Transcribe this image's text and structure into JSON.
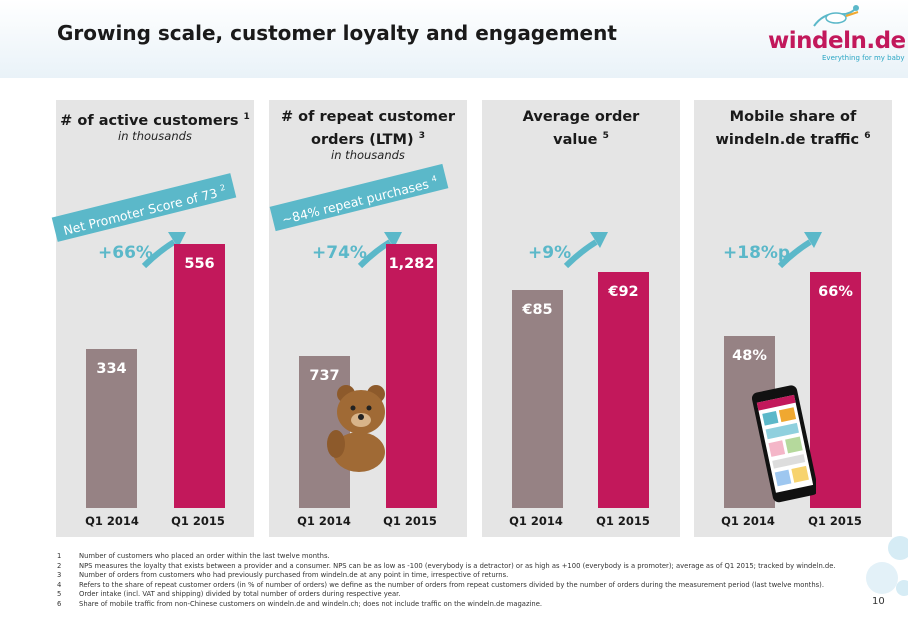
{
  "header": {
    "title": "Growing scale, customer loyalty and engagement"
  },
  "logo": {
    "name": "windeln.de",
    "tagline": "Everything for my baby"
  },
  "panels": [
    {
      "title": "# of active customers",
      "sup": "1",
      "subtitle": "in thousands",
      "growth": "+66%",
      "banner": "Net Promoter Score of 73",
      "banner_sup": "2",
      "values": [
        "334",
        "556"
      ],
      "categories": [
        "Q1 2014",
        "Q1 2015"
      ]
    },
    {
      "title": "# of repeat customer orders (LTM)",
      "sup": "3",
      "subtitle": "in thousands",
      "growth": "+74%",
      "banner": "~84% repeat purchases",
      "banner_sup": "4",
      "values": [
        "737",
        "1,282"
      ],
      "categories": [
        "Q1 2014",
        "Q1 2015"
      ]
    },
    {
      "title": "Average order value",
      "sup": "5",
      "growth": "+9%",
      "values": [
        "€85",
        "€92"
      ],
      "categories": [
        "Q1 2014",
        "Q1 2015"
      ]
    },
    {
      "title": "Mobile share of windeln.de traffic",
      "sup": "6",
      "growth": "+18%p",
      "values": [
        "48%",
        "66%"
      ],
      "categories": [
        "Q1 2014",
        "Q1 2015"
      ]
    }
  ],
  "chart_data": [
    {
      "type": "bar",
      "title": "# of active customers",
      "subtitle": "in thousands",
      "categories": [
        "Q1 2014",
        "Q1 2015"
      ],
      "values": [
        334,
        556
      ]
    },
    {
      "type": "bar",
      "title": "# of repeat customer orders (LTM)",
      "subtitle": "in thousands",
      "categories": [
        "Q1 2014",
        "Q1 2015"
      ],
      "values": [
        737,
        1282
      ]
    },
    {
      "type": "bar",
      "title": "Average order value",
      "categories": [
        "Q1 2014",
        "Q1 2015"
      ],
      "values": [
        85,
        92
      ]
    },
    {
      "type": "bar",
      "title": "Mobile share of windeln.de traffic",
      "categories": [
        "Q1 2014",
        "Q1 2015"
      ],
      "values": [
        48,
        66
      ]
    }
  ],
  "footnotes": [
    {
      "n": "1",
      "text": "Number of customers who placed an order within the last twelve months."
    },
    {
      "n": "2",
      "text": "NPS measures the loyalty that exists between a provider and a consumer. NPS can be as low as -100 (everybody is a detractor) or as high as +100 (everybody is a promoter); average as of Q1 2015; tracked by windeln.de."
    },
    {
      "n": "3",
      "text": "Number of orders from customers who had previously purchased from windeln.de at any point in time, irrespective of returns."
    },
    {
      "n": "4",
      "text": "Refers to the share of repeat customer orders (in % of number of orders) we define as the number of orders from repeat customers divided by the number of orders during the measurement period (last twelve months)."
    },
    {
      "n": "5",
      "text": "Order intake (incl. VAT and shipping) divided by total number of orders during respective year."
    },
    {
      "n": "6",
      "text": "Share of mobile traffic from non-Chinese customers on windeln.de and windeln.ch; does not include traffic on the windeln.de magazine."
    }
  ],
  "page_number": "10",
  "colors": {
    "old_bar": "#968284",
    "new_bar": "#c2185b",
    "accent": "#5bb8c9",
    "panel_bg": "#e5e5e5"
  }
}
